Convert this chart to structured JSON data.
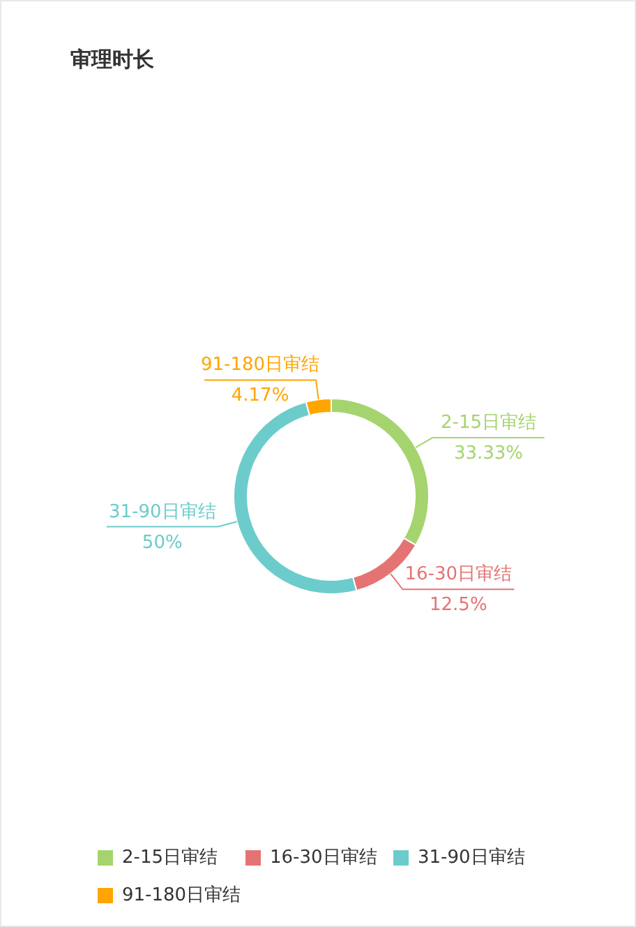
{
  "chart_data": {
    "type": "donut",
    "title": "审理时长",
    "categories": [
      "2-15日审结",
      "16-30日审结",
      "31-90日审结",
      "91-180日审结"
    ],
    "values": [
      33.33,
      12.5,
      50,
      4.17
    ],
    "colors": [
      "#a5d46f",
      "#e57373",
      "#6ccccc",
      "#ffa500"
    ],
    "value_labels": [
      "33.33%",
      "12.5%",
      "50%",
      "4.17%"
    ],
    "legend": "bottom"
  }
}
